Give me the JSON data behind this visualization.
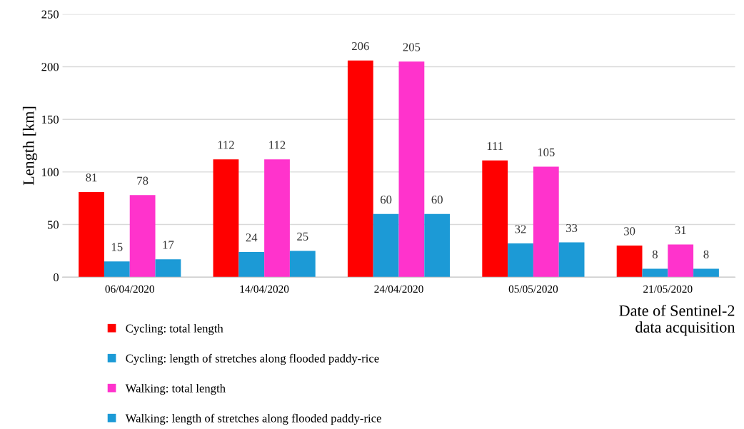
{
  "chart_data": {
    "type": "bar",
    "ylabel": "Length [km]",
    "xlabel": "Date of Sentinel-2\ndata acquisition",
    "categories": [
      "06/04/2020",
      "14/04/2020",
      "24/04/2020",
      "05/05/2020",
      "21/05/2020"
    ],
    "series": [
      {
        "name": "Cycling: total length",
        "color": "#ff0000",
        "values": [
          81,
          112,
          206,
          111,
          30
        ]
      },
      {
        "name": "Cycling: length of stretches along flooded paddy-rice",
        "color": "#1c9ad6",
        "values": [
          15,
          24,
          60,
          32,
          8
        ]
      },
      {
        "name": "Walking: total length",
        "color": "#ff33cc",
        "values": [
          78,
          112,
          205,
          105,
          31
        ]
      },
      {
        "name": "Walking: length of stretches along flooded paddy-rice",
        "color": "#1c9ad6",
        "values": [
          17,
          25,
          60,
          33,
          8
        ]
      }
    ],
    "ylim": [
      0,
      250
    ],
    "yticks": [
      0,
      50,
      100,
      150,
      200,
      250
    ],
    "grid": "y",
    "legend": "bottom left",
    "data_labels": true
  }
}
